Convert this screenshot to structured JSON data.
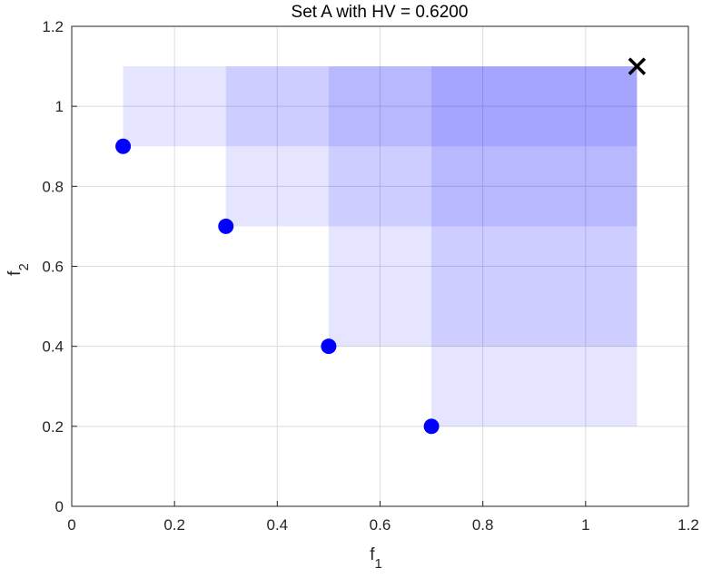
{
  "chart_data": {
    "type": "scatter",
    "title": "Set A with HV = 0.6200",
    "xlabel": {
      "base": "f",
      "sub": "1"
    },
    "ylabel": {
      "base": "f",
      "sub": "2"
    },
    "xlim": [
      0,
      1.2
    ],
    "ylim": [
      0,
      1.2
    ],
    "xticks": [
      "0",
      "0.2",
      "0.4",
      "0.6",
      "0.8",
      "1",
      "1.2"
    ],
    "yticks": [
      "0",
      "0.2",
      "0.4",
      "0.6",
      "0.8",
      "1",
      "1.2"
    ],
    "xtick_values": [
      0,
      0.2,
      0.4,
      0.6,
      0.8,
      1,
      1.2
    ],
    "ytick_values": [
      0,
      0.2,
      0.4,
      0.6,
      0.8,
      1,
      1.2
    ],
    "grid": true,
    "points": [
      {
        "x": 0.1,
        "y": 0.9
      },
      {
        "x": 0.3,
        "y": 0.7
      },
      {
        "x": 0.5,
        "y": 0.4
      },
      {
        "x": 0.7,
        "y": 0.2
      }
    ],
    "reference_point": {
      "x": 1.1,
      "y": 1.1
    },
    "colors": {
      "point": "#0000ff",
      "region": "#0000ff",
      "reference": "#000000",
      "grid": "#dcdcdc",
      "axis": "#262626"
    }
  }
}
